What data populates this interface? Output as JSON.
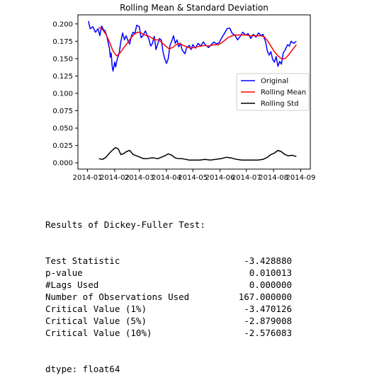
{
  "chart_data": {
    "type": "line",
    "title": "Rolling Mean & Standard Deviation",
    "xlabel": "",
    "ylabel": "",
    "x_range": [
      "2014-01-01",
      "2014-09-01"
    ],
    "ylim": [
      -0.009,
      0.213
    ],
    "x_ticks": [
      {
        "date": "2014-01-01",
        "label": "2014-01"
      },
      {
        "date": "2014-02-01",
        "label": "2014-02"
      },
      {
        "date": "2014-03-01",
        "label": "2014-03"
      },
      {
        "date": "2014-04-01",
        "label": "2014-04"
      },
      {
        "date": "2014-05-01",
        "label": "2014-05"
      },
      {
        "date": "2014-06-01",
        "label": "2014-06"
      },
      {
        "date": "2014-07-01",
        "label": "2014-07"
      },
      {
        "date": "2014-08-01",
        "label": "2014-08"
      },
      {
        "date": "2014-09-01",
        "label": "2014-09"
      }
    ],
    "y_ticks": [
      "0.000",
      "0.025",
      "0.050",
      "0.075",
      "0.100",
      "0.125",
      "0.150",
      "0.175",
      "0.200"
    ],
    "legend_position": "center-right",
    "grid": false,
    "series": [
      {
        "name": "Original",
        "color": "#0000ff",
        "points": [
          [
            "2014-01-02",
            0.204
          ],
          [
            "2014-01-04",
            0.193
          ],
          [
            "2014-01-07",
            0.196
          ],
          [
            "2014-01-10",
            0.188
          ],
          [
            "2014-01-13",
            0.193
          ],
          [
            "2014-01-15",
            0.183
          ],
          [
            "2014-01-17",
            0.197
          ],
          [
            "2014-01-19",
            0.192
          ],
          [
            "2014-01-21",
            0.19
          ],
          [
            "2014-01-23",
            0.182
          ],
          [
            "2014-01-25",
            0.17
          ],
          [
            "2014-01-26",
            0.165
          ],
          [
            "2014-01-27",
            0.152
          ],
          [
            "2014-01-28",
            0.158
          ],
          [
            "2014-01-29",
            0.14
          ],
          [
            "2014-01-30",
            0.132
          ],
          [
            "2014-02-01",
            0.145
          ],
          [
            "2014-02-02",
            0.138
          ],
          [
            "2014-02-04",
            0.15
          ],
          [
            "2014-02-06",
            0.157
          ],
          [
            "2014-02-08",
            0.175
          ],
          [
            "2014-02-10",
            0.187
          ],
          [
            "2014-02-12",
            0.177
          ],
          [
            "2014-02-14",
            0.183
          ],
          [
            "2014-02-16",
            0.176
          ],
          [
            "2014-02-18",
            0.171
          ],
          [
            "2014-02-20",
            0.183
          ],
          [
            "2014-02-22",
            0.188
          ],
          [
            "2014-02-24",
            0.186
          ],
          [
            "2014-02-26",
            0.198
          ],
          [
            "2014-03-01",
            0.196
          ],
          [
            "2014-03-03",
            0.18
          ],
          [
            "2014-03-05",
            0.183
          ],
          [
            "2014-03-08",
            0.19
          ],
          [
            "2014-03-10",
            0.183
          ],
          [
            "2014-03-12",
            0.178
          ],
          [
            "2014-03-14",
            0.168
          ],
          [
            "2014-03-16",
            0.172
          ],
          [
            "2014-03-18",
            0.182
          ],
          [
            "2014-03-20",
            0.163
          ],
          [
            "2014-03-22",
            0.171
          ],
          [
            "2014-03-24",
            0.179
          ],
          [
            "2014-03-26",
            0.177
          ],
          [
            "2014-03-28",
            0.16
          ],
          [
            "2014-03-30",
            0.15
          ],
          [
            "2014-04-01",
            0.143
          ],
          [
            "2014-04-03",
            0.15
          ],
          [
            "2014-04-05",
            0.169
          ],
          [
            "2014-04-07",
            0.175
          ],
          [
            "2014-04-09",
            0.183
          ],
          [
            "2014-04-11",
            0.172
          ],
          [
            "2014-04-13",
            0.177
          ],
          [
            "2014-04-15",
            0.167
          ],
          [
            "2014-04-17",
            0.172
          ],
          [
            "2014-04-19",
            0.162
          ],
          [
            "2014-04-22",
            0.157
          ],
          [
            "2014-04-24",
            0.166
          ],
          [
            "2014-04-27",
            0.169
          ],
          [
            "2014-04-29",
            0.163
          ],
          [
            "2014-05-01",
            0.17
          ],
          [
            "2014-05-04",
            0.165
          ],
          [
            "2014-05-07",
            0.172
          ],
          [
            "2014-05-10",
            0.168
          ],
          [
            "2014-05-13",
            0.174
          ],
          [
            "2014-05-16",
            0.169
          ],
          [
            "2014-05-19",
            0.166
          ],
          [
            "2014-05-22",
            0.17
          ],
          [
            "2014-05-25",
            0.174
          ],
          [
            "2014-05-28",
            0.171
          ],
          [
            "2014-05-31",
            0.173
          ],
          [
            "2014-06-03",
            0.18
          ],
          [
            "2014-06-06",
            0.186
          ],
          [
            "2014-06-09",
            0.193
          ],
          [
            "2014-06-12",
            0.194
          ],
          [
            "2014-06-15",
            0.186
          ],
          [
            "2014-06-18",
            0.184
          ],
          [
            "2014-06-21",
            0.177
          ],
          [
            "2014-06-24",
            0.182
          ],
          [
            "2014-06-27",
            0.188
          ],
          [
            "2014-06-30",
            0.184
          ],
          [
            "2014-07-03",
            0.186
          ],
          [
            "2014-07-06",
            0.179
          ],
          [
            "2014-07-09",
            0.185
          ],
          [
            "2014-07-12",
            0.181
          ],
          [
            "2014-07-15",
            0.187
          ],
          [
            "2014-07-18",
            0.183
          ],
          [
            "2014-07-20",
            0.185
          ],
          [
            "2014-07-23",
            0.174
          ],
          [
            "2014-07-25",
            0.161
          ],
          [
            "2014-07-27",
            0.155
          ],
          [
            "2014-07-29",
            0.16
          ],
          [
            "2014-07-31",
            0.149
          ],
          [
            "2014-08-02",
            0.145
          ],
          [
            "2014-08-04",
            0.153
          ],
          [
            "2014-08-06",
            0.139
          ],
          [
            "2014-08-08",
            0.146
          ],
          [
            "2014-08-10",
            0.142
          ],
          [
            "2014-08-12",
            0.158
          ],
          [
            "2014-08-14",
            0.162
          ],
          [
            "2014-08-17",
            0.17
          ],
          [
            "2014-08-19",
            0.168
          ],
          [
            "2014-08-21",
            0.175
          ],
          [
            "2014-08-24",
            0.172
          ],
          [
            "2014-08-27",
            0.175
          ]
        ]
      },
      {
        "name": "Rolling Mean",
        "color": "#ff0000",
        "points": [
          [
            "2014-01-14",
            0.195
          ],
          [
            "2014-01-18",
            0.192
          ],
          [
            "2014-01-22",
            0.185
          ],
          [
            "2014-01-26",
            0.174
          ],
          [
            "2014-01-30",
            0.161
          ],
          [
            "2014-02-03",
            0.154
          ],
          [
            "2014-02-07",
            0.158
          ],
          [
            "2014-02-11",
            0.165
          ],
          [
            "2014-02-15",
            0.172
          ],
          [
            "2014-02-19",
            0.179
          ],
          [
            "2014-02-23",
            0.185
          ],
          [
            "2014-02-27",
            0.188
          ],
          [
            "2014-03-03",
            0.187
          ],
          [
            "2014-03-07",
            0.184
          ],
          [
            "2014-03-11",
            0.183
          ],
          [
            "2014-03-15",
            0.18
          ],
          [
            "2014-03-19",
            0.177
          ],
          [
            "2014-03-23",
            0.177
          ],
          [
            "2014-03-27",
            0.173
          ],
          [
            "2014-03-31",
            0.168
          ],
          [
            "2014-04-04",
            0.164
          ],
          [
            "2014-04-08",
            0.166
          ],
          [
            "2014-04-12",
            0.17
          ],
          [
            "2014-04-16",
            0.172
          ],
          [
            "2014-04-20",
            0.169
          ],
          [
            "2014-04-24",
            0.167
          ],
          [
            "2014-04-28",
            0.165
          ],
          [
            "2014-05-02",
            0.166
          ],
          [
            "2014-05-06",
            0.167
          ],
          [
            "2014-05-10",
            0.168
          ],
          [
            "2014-05-14",
            0.169
          ],
          [
            "2014-05-18",
            0.168
          ],
          [
            "2014-05-22",
            0.169
          ],
          [
            "2014-05-26",
            0.17
          ],
          [
            "2014-05-30",
            0.17
          ],
          [
            "2014-06-03",
            0.173
          ],
          [
            "2014-06-07",
            0.177
          ],
          [
            "2014-06-11",
            0.181
          ],
          [
            "2014-06-15",
            0.183
          ],
          [
            "2014-06-19",
            0.184
          ],
          [
            "2014-06-23",
            0.184
          ],
          [
            "2014-06-27",
            0.184
          ],
          [
            "2014-07-01",
            0.184
          ],
          [
            "2014-07-05",
            0.183
          ],
          [
            "2014-07-09",
            0.183
          ],
          [
            "2014-07-13",
            0.183
          ],
          [
            "2014-07-17",
            0.183
          ],
          [
            "2014-07-21",
            0.182
          ],
          [
            "2014-07-25",
            0.176
          ],
          [
            "2014-07-29",
            0.168
          ],
          [
            "2014-08-02",
            0.16
          ],
          [
            "2014-08-06",
            0.154
          ],
          [
            "2014-08-10",
            0.15
          ],
          [
            "2014-08-14",
            0.15
          ],
          [
            "2014-08-18",
            0.155
          ],
          [
            "2014-08-22",
            0.162
          ],
          [
            "2014-08-27",
            0.17
          ]
        ]
      },
      {
        "name": "Rolling Std",
        "color": "#000000",
        "points": [
          [
            "2014-01-14",
            0.006
          ],
          [
            "2014-01-18",
            0.005
          ],
          [
            "2014-01-22",
            0.008
          ],
          [
            "2014-01-26",
            0.014
          ],
          [
            "2014-01-30",
            0.019
          ],
          [
            "2014-02-02",
            0.022
          ],
          [
            "2014-02-05",
            0.02
          ],
          [
            "2014-02-08",
            0.012
          ],
          [
            "2014-02-11",
            0.013
          ],
          [
            "2014-02-14",
            0.016
          ],
          [
            "2014-02-18",
            0.018
          ],
          [
            "2014-02-22",
            0.012
          ],
          [
            "2014-02-26",
            0.01
          ],
          [
            "2014-03-02",
            0.008
          ],
          [
            "2014-03-06",
            0.006
          ],
          [
            "2014-03-10",
            0.006
          ],
          [
            "2014-03-14",
            0.007
          ],
          [
            "2014-03-18",
            0.007
          ],
          [
            "2014-03-22",
            0.006
          ],
          [
            "2014-03-26",
            0.008
          ],
          [
            "2014-03-30",
            0.01
          ],
          [
            "2014-04-03",
            0.013
          ],
          [
            "2014-04-07",
            0.011
          ],
          [
            "2014-04-11",
            0.007
          ],
          [
            "2014-04-15",
            0.006
          ],
          [
            "2014-04-19",
            0.006
          ],
          [
            "2014-04-23",
            0.005
          ],
          [
            "2014-04-27",
            0.004
          ],
          [
            "2014-05-03",
            0.004
          ],
          [
            "2014-05-09",
            0.004
          ],
          [
            "2014-05-15",
            0.005
          ],
          [
            "2014-05-21",
            0.004
          ],
          [
            "2014-05-27",
            0.005
          ],
          [
            "2014-06-02",
            0.006
          ],
          [
            "2014-06-08",
            0.008
          ],
          [
            "2014-06-14",
            0.007
          ],
          [
            "2014-06-20",
            0.005
          ],
          [
            "2014-06-26",
            0.004
          ],
          [
            "2014-07-02",
            0.004
          ],
          [
            "2014-07-08",
            0.004
          ],
          [
            "2014-07-14",
            0.004
          ],
          [
            "2014-07-20",
            0.005
          ],
          [
            "2014-07-25",
            0.008
          ],
          [
            "2014-07-29",
            0.012
          ],
          [
            "2014-08-02",
            0.014
          ],
          [
            "2014-08-06",
            0.018
          ],
          [
            "2014-08-10",
            0.016
          ],
          [
            "2014-08-14",
            0.012
          ],
          [
            "2014-08-18",
            0.01
          ],
          [
            "2014-08-22",
            0.011
          ],
          [
            "2014-08-27",
            0.009
          ]
        ]
      }
    ]
  },
  "results": {
    "header": "Results of Dickey-Fuller Test:",
    "rows": [
      {
        "label": "Test Statistic",
        "value": "-3.428880"
      },
      {
        "label": "p-value",
        "value": "0.010013"
      },
      {
        "label": "#Lags Used",
        "value": "0.000000"
      },
      {
        "label": "Number of Observations Used",
        "value": "167.000000"
      },
      {
        "label": "Critical Value (1%)",
        "value": "-3.470126"
      },
      {
        "label": "Critical Value (5%)",
        "value": "-2.879008"
      },
      {
        "label": "Critical Value (10%)",
        "value": "-2.576083"
      }
    ],
    "dtype": "dtype: float64"
  }
}
